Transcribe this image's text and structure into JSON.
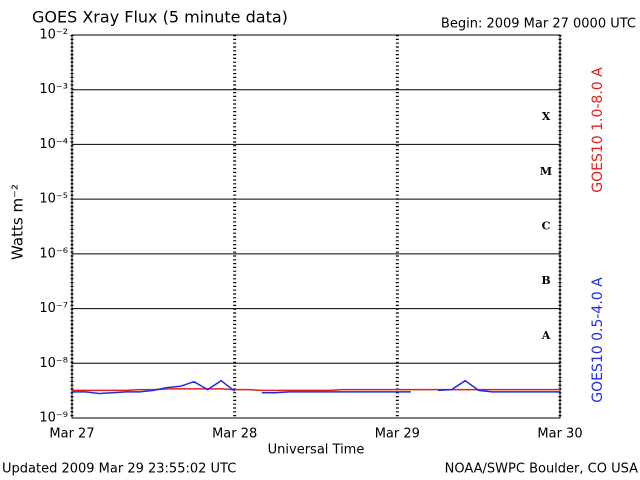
{
  "chart_data": {
    "type": "line",
    "title": "GOES Xray Flux (5 minute data)",
    "subtitle": "Begin:  2009 Mar 27 0000 UTC",
    "xlabel": "Universal Time",
    "ylabel": "Watts m⁻²",
    "footer_left": "Updated 2009 Mar 29 23:55:02 UTC",
    "footer_right": "NOAA/SWPC Boulder, CO USA",
    "log_y": true,
    "grid": true,
    "xlim": [
      0,
      72
    ],
    "xticks": [
      {
        "value": 0,
        "label": "Mar 27"
      },
      {
        "value": 24,
        "label": "Mar 28"
      },
      {
        "value": 48,
        "label": "Mar 29"
      },
      {
        "value": 72,
        "label": "Mar 30"
      }
    ],
    "ylim": [
      1e-09,
      0.01
    ],
    "yticks": [
      {
        "value": 1e-09,
        "label": "10⁻⁹"
      },
      {
        "value": 1e-08,
        "label": "10⁻⁸"
      },
      {
        "value": 1e-07,
        "label": "10⁻⁷"
      },
      {
        "value": 1e-06,
        "label": "10⁻⁶"
      },
      {
        "value": 1e-05,
        "label": "10⁻⁵"
      },
      {
        "value": 0.0001,
        "label": "10⁻⁴"
      },
      {
        "value": 0.001,
        "label": "10⁻³"
      },
      {
        "value": 0.01,
        "label": "10⁻²"
      }
    ],
    "flare_classes": [
      "A",
      "B",
      "C",
      "M",
      "X"
    ],
    "x": [
      0,
      2,
      4,
      6,
      8,
      10,
      12,
      14,
      16,
      18,
      20,
      22,
      24,
      26,
      28,
      30,
      32,
      34,
      36,
      38,
      40,
      42,
      44,
      46,
      48,
      50,
      52,
      54,
      56,
      58,
      60,
      62,
      64,
      66,
      68,
      70,
      72
    ],
    "series": [
      {
        "name": "GOES10 1.0-8.0 A",
        "color": "#e0201c",
        "values": [
          3.2e-09,
          3.2e-09,
          3.2e-09,
          3.2e-09,
          3.2e-09,
          3.3e-09,
          3.3e-09,
          3.4e-09,
          3.4e-09,
          3.4e-09,
          3.4e-09,
          3.4e-09,
          3.3e-09,
          3.3e-09,
          3.2e-09,
          3.2e-09,
          3.2e-09,
          3.2e-09,
          3.2e-09,
          3.2e-09,
          3.3e-09,
          3.3e-09,
          3.3e-09,
          3.3e-09,
          3.3e-09,
          3.3e-09,
          3.3e-09,
          3.3e-09,
          3.3e-09,
          3.3e-09,
          3.3e-09,
          3.3e-09,
          3.3e-09,
          3.3e-09,
          3.3e-09,
          3.3e-09,
          3.3e-09
        ]
      },
      {
        "name": "GOES10 0.5-4.0 A",
        "color": "#1c2ee0",
        "values": [
          3e-09,
          3e-09,
          2.8e-09,
          2.9e-09,
          3e-09,
          3e-09,
          3.2e-09,
          3.6e-09,
          3.8e-09,
          4.6e-09,
          3.3e-09,
          4.8e-09,
          3.1e-09,
          null,
          2.9e-09,
          2.9e-09,
          3e-09,
          3e-09,
          3e-09,
          3e-09,
          3e-09,
          3e-09,
          3e-09,
          3e-09,
          3e-09,
          3e-09,
          null,
          3.2e-09,
          3.3e-09,
          4.8e-09,
          3.2e-09,
          3e-09,
          3e-09,
          3e-09,
          3e-09,
          3e-09,
          3e-09
        ]
      }
    ]
  }
}
